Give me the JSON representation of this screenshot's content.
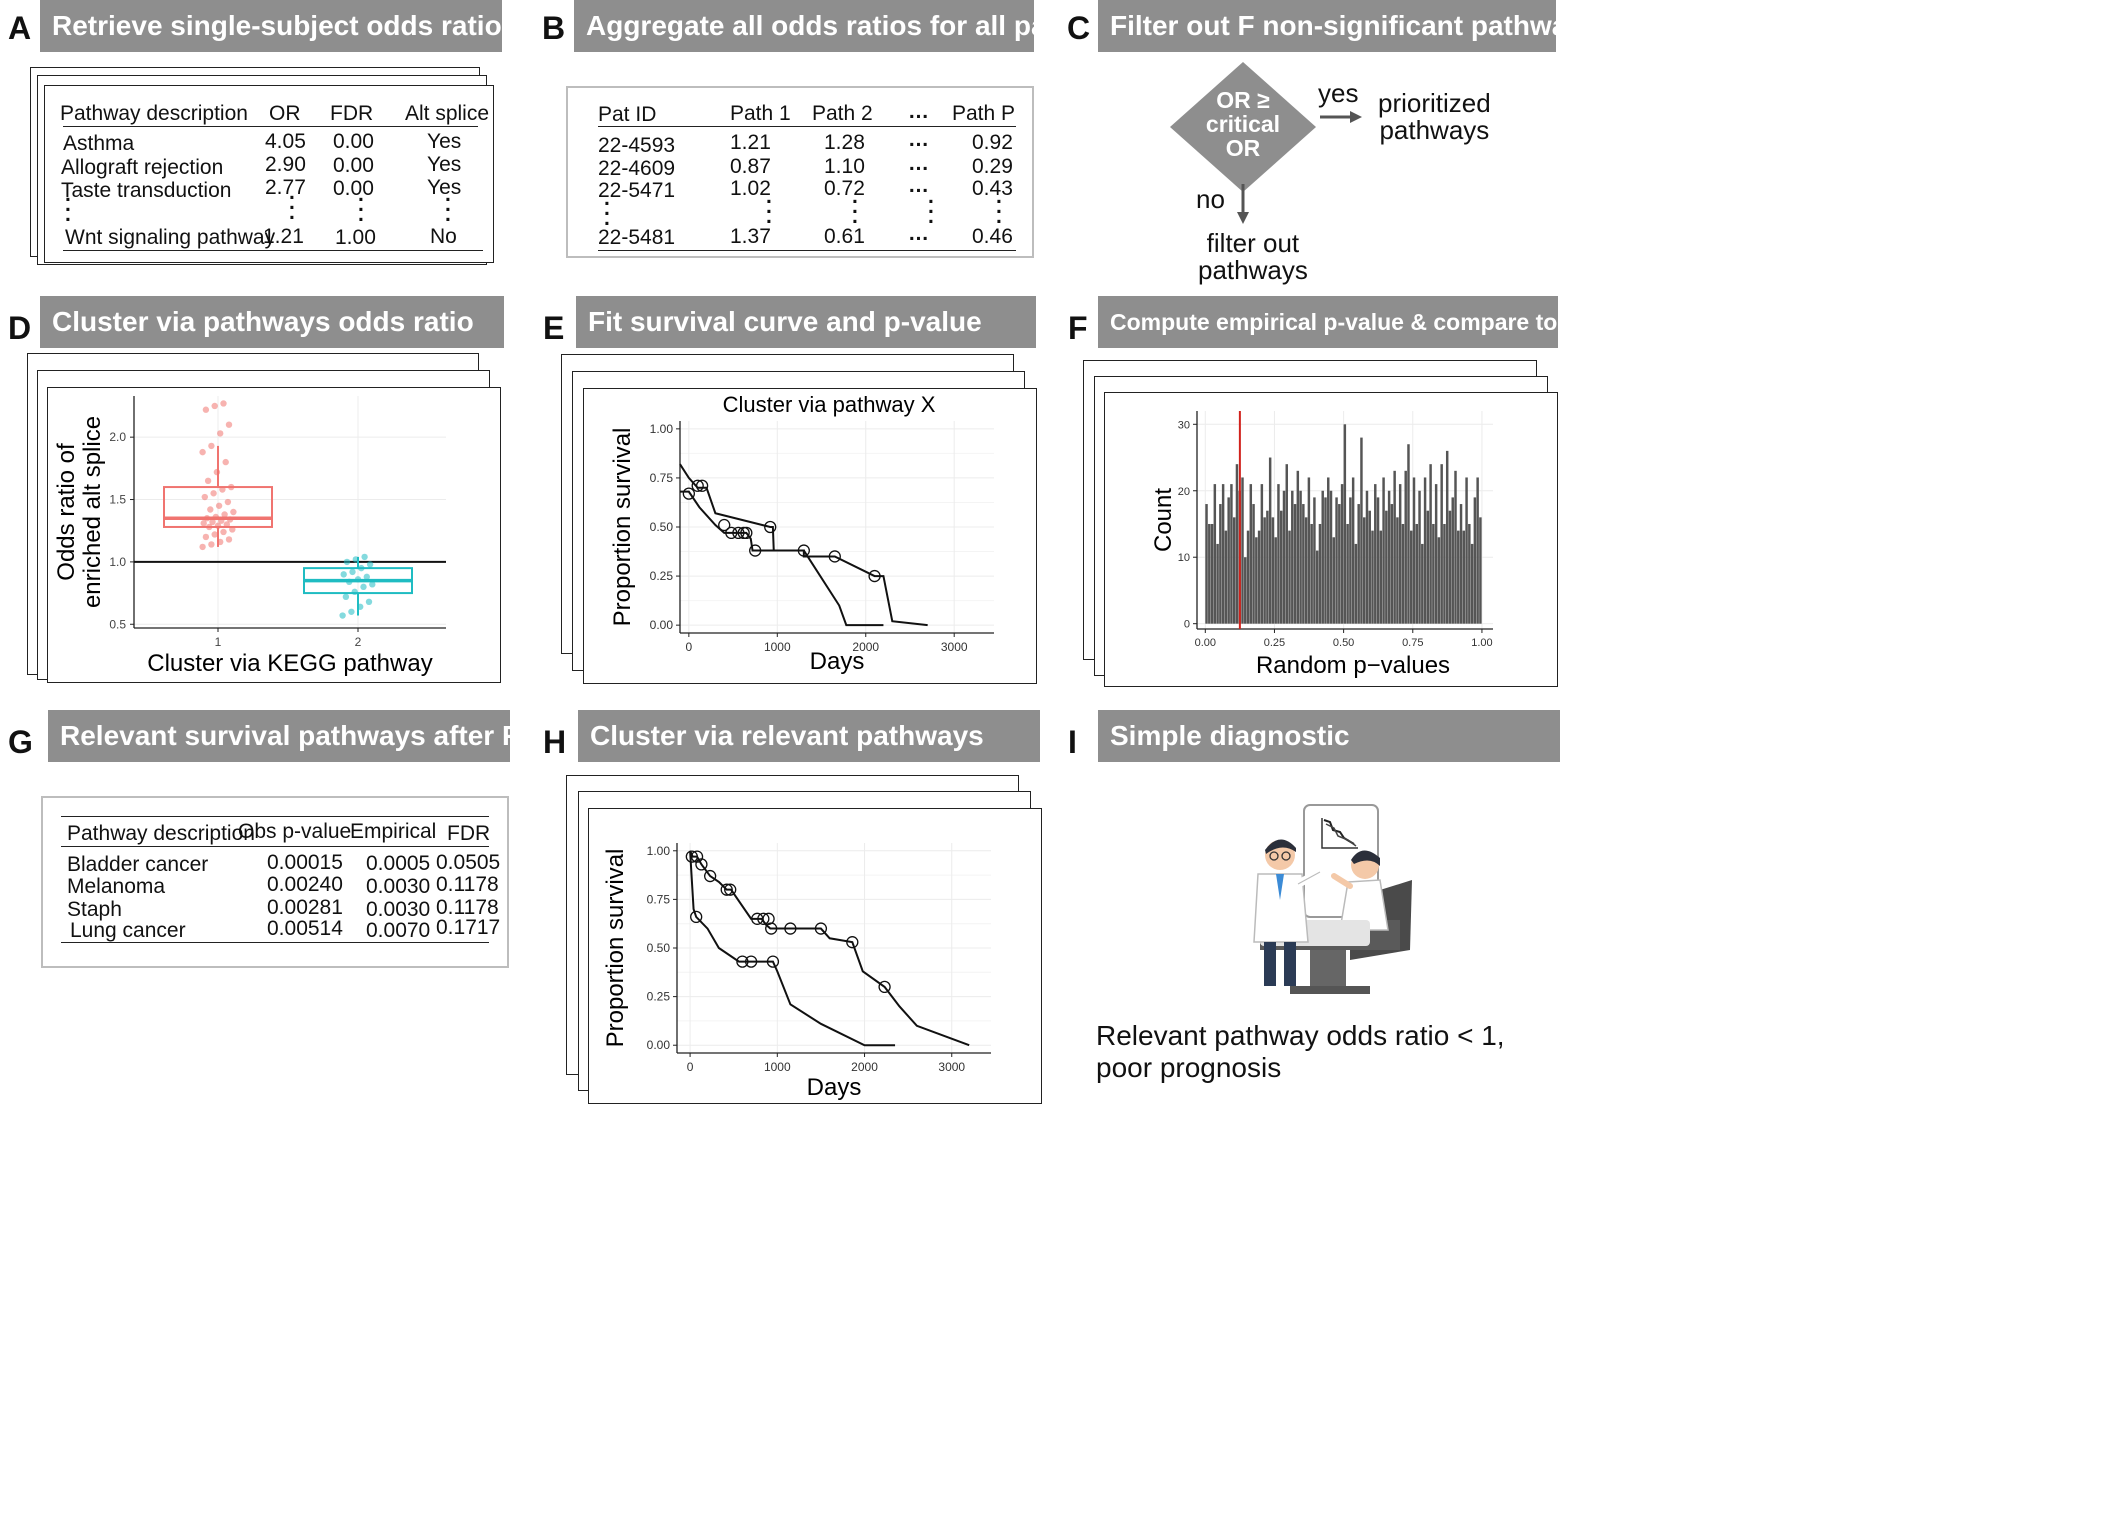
{
  "panels": {
    "A": {
      "letter": "A",
      "title": "Retrieve single-subject odds ratios and FDR",
      "headers": [
        "Pathway description",
        "OR",
        "FDR",
        "Alt splice"
      ],
      "rows": [
        [
          "Asthma",
          "4.05",
          "0.00",
          "Yes"
        ],
        [
          "Allograft rejection",
          "2.90",
          "0.00",
          "Yes"
        ],
        [
          "Taste transduction",
          "2.77",
          "0.00",
          "Yes"
        ],
        [
          "Wnt signaling pathway",
          "1.21",
          "1.00",
          "No"
        ]
      ]
    },
    "B": {
      "letter": "B",
      "title": "Aggregate all odds ratios for all pathways",
      "headers": [
        "Pat ID",
        "Path 1",
        "Path 2",
        "…",
        "Path P"
      ],
      "rows": [
        [
          "22-4593",
          "1.21",
          "1.28",
          "…",
          "0.92"
        ],
        [
          "22-4609",
          "0.87",
          "1.10",
          "…",
          "0.29"
        ],
        [
          "22-5471",
          "1.02",
          "0.72",
          "…",
          "0.43"
        ],
        [
          "22-5481",
          "1.37",
          "0.61",
          "…",
          "0.46"
        ]
      ]
    },
    "C": {
      "letter": "C",
      "title": "Filter out F non-significant pathways",
      "diamond_lines": [
        "OR ≥",
        "critical",
        "OR"
      ],
      "yes": "yes",
      "no": "no",
      "yes_target": [
        "prioritized",
        "pathways"
      ],
      "no_target": [
        "filter out",
        "pathways"
      ]
    },
    "D": {
      "letter": "D",
      "title": "Cluster via pathways odds ratio"
    },
    "E": {
      "letter": "E",
      "title": "Fit survival curve and p-value"
    },
    "F": {
      "letter": "F",
      "title": "Compute empirical p-value & compare to obs. p-value"
    },
    "G": {
      "letter": "G",
      "title": "Relevant survival pathways after FDR",
      "headers": [
        "Pathway description",
        "Obs p-value",
        "Empirical",
        "FDR"
      ],
      "rows": [
        [
          "Bladder cancer",
          "0.00015",
          "0.0005",
          "0.0505"
        ],
        [
          "Melanoma",
          "0.00240",
          "0.0030",
          "0.1178"
        ],
        [
          "Staph",
          "0.00281",
          "0.0030",
          "0.1178"
        ],
        [
          "Lung cancer",
          "0.00514",
          "0.0070",
          "0.1717"
        ]
      ]
    },
    "H": {
      "letter": "H",
      "title": "Cluster via relevant pathways"
    },
    "I": {
      "letter": "I",
      "title": "Simple diagnostic",
      "caption_lines": [
        "Relevant pathway odds ratio < 1,",
        "poor prognosis"
      ]
    }
  },
  "chart_data": [
    {
      "panel": "D",
      "type": "box",
      "xlabel": "Cluster via KEGG pathway",
      "ylabel_lines": [
        "Odds ratio of",
        "enriched alt splice"
      ],
      "categories": [
        "1",
        "2"
      ],
      "yticks": [
        "0.5",
        "1.0",
        "1.5",
        "2.0"
      ],
      "ylim": [
        0.47,
        2.33
      ],
      "reference_line": 1.0,
      "series": [
        {
          "min": 1.12,
          "q1": 1.28,
          "median": 1.35,
          "q3": 1.6,
          "max": 1.93,
          "color": "#f07470",
          "points": [
            1.12,
            1.14,
            1.16,
            1.18,
            1.2,
            1.22,
            1.24,
            1.26,
            1.28,
            1.29,
            1.3,
            1.31,
            1.32,
            1.33,
            1.34,
            1.35,
            1.36,
            1.38,
            1.4,
            1.42,
            1.45,
            1.48,
            1.52,
            1.55,
            1.58,
            1.6,
            1.65,
            1.72,
            1.8,
            1.88,
            1.93,
            2.03,
            2.1,
            2.22,
            2.25,
            2.27
          ]
        },
        {
          "min": 0.57,
          "q1": 0.75,
          "median": 0.85,
          "q3": 0.95,
          "max": 1.04,
          "color": "#1fbcc2",
          "points": [
            0.57,
            0.6,
            0.64,
            0.68,
            0.72,
            0.76,
            0.8,
            0.82,
            0.84,
            0.86,
            0.88,
            0.9,
            0.92,
            0.95,
            0.98,
            1.0,
            1.02,
            1.04
          ]
        }
      ]
    },
    {
      "panel": "E",
      "type": "line",
      "title": "Cluster via pathway X",
      "xlabel": "Days",
      "ylabel": "Proportion survival",
      "xticks": [
        "0",
        "1000",
        "2000",
        "3000"
      ],
      "yticks": [
        "0.00",
        "0.25",
        "0.50",
        "0.75",
        "1.00"
      ],
      "xlim": [
        -100,
        3450
      ],
      "ylim": [
        -0.04,
        1.04
      ],
      "series": [
        {
          "points": [
            [
              -100,
              0.82
            ],
            [
              0,
              0.75
            ],
            [
              100,
              0.7
            ],
            [
              200,
              0.7
            ],
            [
              300,
              0.57
            ],
            [
              920,
              0.5
            ],
            [
              950,
              0.5
            ],
            [
              960,
              0.38
            ],
            [
              1300,
              0.38
            ],
            [
              1700,
              0.1
            ],
            [
              1780,
              0.0
            ],
            [
              2200,
              0.0
            ]
          ],
          "censored": [
            [
              100,
              0.71
            ],
            [
              150,
              0.71
            ],
            [
              920,
              0.5
            ],
            [
              1300,
              0.38
            ]
          ]
        },
        {
          "points": [
            [
              -100,
              0.68
            ],
            [
              0,
              0.68
            ],
            [
              120,
              0.6
            ],
            [
              300,
              0.51
            ],
            [
              400,
              0.47
            ],
            [
              650,
              0.47
            ],
            [
              700,
              0.44
            ],
            [
              720,
              0.38
            ],
            [
              1300,
              0.38
            ],
            [
              1300,
              0.35
            ],
            [
              1650,
              0.35
            ],
            [
              2100,
              0.25
            ],
            [
              2200,
              0.25
            ],
            [
              2300,
              0.02
            ],
            [
              2700,
              0.0
            ]
          ],
          "censored": [
            [
              0,
              0.67
            ],
            [
              400,
              0.51
            ],
            [
              480,
              0.47
            ],
            [
              560,
              0.47
            ],
            [
              620,
              0.47
            ],
            [
              650,
              0.47
            ],
            [
              750,
              0.38
            ],
            [
              1650,
              0.35
            ],
            [
              2100,
              0.25
            ]
          ]
        }
      ]
    },
    {
      "panel": "F",
      "type": "bar",
      "xlabel": "Random p−values",
      "ylabel": "Count",
      "xticks": [
        "0.00",
        "0.25",
        "0.50",
        "0.75",
        "1.00"
      ],
      "yticks": [
        "0",
        "10",
        "20",
        "30"
      ],
      "xlim": [
        -0.03,
        1.04
      ],
      "ylim": [
        -0.8,
        32
      ],
      "reference_x": 0.125,
      "bin_width": 0.01,
      "values": [
        18,
        15,
        15,
        21,
        12,
        18,
        21,
        14,
        19,
        21,
        16,
        24,
        20,
        22,
        10,
        14,
        21,
        18,
        13,
        14,
        21,
        16,
        17,
        25,
        16,
        13,
        21,
        17,
        20,
        24,
        14,
        20,
        18,
        23,
        20,
        18,
        16,
        22,
        15,
        19,
        11,
        15,
        20,
        19,
        22,
        20,
        13,
        19,
        18,
        21,
        30,
        15,
        19,
        22,
        12,
        18,
        28,
        16,
        20,
        17,
        14,
        21,
        19,
        14,
        22,
        17,
        20,
        18,
        23,
        16,
        21,
        15,
        23,
        27,
        14,
        22,
        15,
        20,
        12,
        22,
        17,
        24,
        15,
        21,
        13,
        24,
        15,
        26,
        17,
        19,
        23,
        14,
        18,
        14,
        22,
        15,
        12,
        19,
        22,
        16
      ]
    },
    {
      "panel": "H",
      "type": "line",
      "xlabel": "Days",
      "ylabel": "Proportion survival",
      "xticks": [
        "0",
        "1000",
        "2000",
        "3000"
      ],
      "yticks": [
        "0.00",
        "0.25",
        "0.50",
        "0.75",
        "1.00"
      ],
      "xlim": [
        -150,
        3450
      ],
      "ylim": [
        -0.04,
        1.04
      ],
      "series": [
        {
          "points": [
            [
              0,
              1.0
            ],
            [
              30,
              0.97
            ],
            [
              80,
              0.97
            ],
            [
              130,
              0.93
            ],
            [
              230,
              0.87
            ],
            [
              330,
              0.84
            ],
            [
              420,
              0.8
            ],
            [
              470,
              0.8
            ],
            [
              700,
              0.65
            ],
            [
              820,
              0.65
            ],
            [
              870,
              0.62
            ],
            [
              920,
              0.6
            ],
            [
              1500,
              0.6
            ],
            [
              1600,
              0.55
            ],
            [
              1860,
              0.53
            ],
            [
              1980,
              0.38
            ],
            [
              2230,
              0.3
            ],
            [
              2400,
              0.2
            ],
            [
              2600,
              0.1
            ],
            [
              3200,
              0.0
            ]
          ],
          "censored": [
            [
              20,
              0.97
            ],
            [
              80,
              0.97
            ],
            [
              130,
              0.93
            ],
            [
              230,
              0.87
            ],
            [
              420,
              0.8
            ],
            [
              460,
              0.8
            ],
            [
              770,
              0.65
            ],
            [
              840,
              0.65
            ],
            [
              900,
              0.65
            ],
            [
              930,
              0.6
            ],
            [
              1150,
              0.6
            ],
            [
              1500,
              0.6
            ],
            [
              1860,
              0.53
            ],
            [
              2230,
              0.3
            ]
          ]
        },
        {
          "points": [
            [
              0,
              1.0
            ],
            [
              40,
              0.7
            ],
            [
              70,
              0.66
            ],
            [
              200,
              0.6
            ],
            [
              330,
              0.5
            ],
            [
              560,
              0.43
            ],
            [
              950,
              0.43
            ],
            [
              1000,
              0.38
            ],
            [
              1150,
              0.21
            ],
            [
              1500,
              0.11
            ],
            [
              2000,
              0.0
            ],
            [
              2350,
              0.0
            ]
          ],
          "censored": [
            [
              70,
              0.66
            ],
            [
              600,
              0.43
            ],
            [
              700,
              0.43
            ],
            [
              950,
              0.43
            ]
          ]
        }
      ]
    }
  ]
}
